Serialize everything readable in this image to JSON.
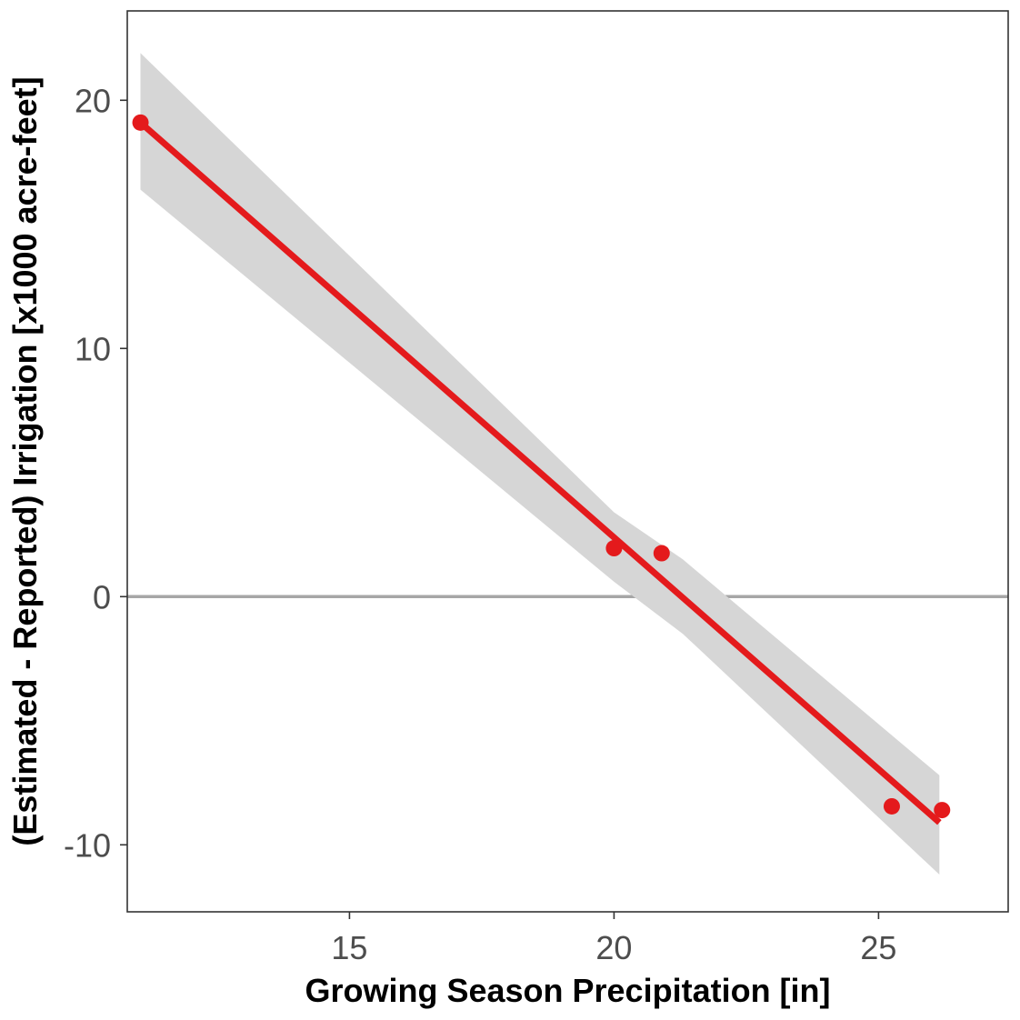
{
  "chart_data": {
    "type": "scatter",
    "xlabel": "Growing Season Precipitation [in]",
    "ylabel": "(Estimated - Reported) Irrigation [x1000 acre-feet]",
    "xlim": [
      10.8,
      27.45
    ],
    "ylim": [
      -12.7,
      23.6
    ],
    "x_ticks": [
      15,
      20,
      25
    ],
    "y_ticks": [
      -10,
      0,
      10,
      20
    ],
    "x_tick_labels": [
      "15",
      "20",
      "25"
    ],
    "y_tick_labels": [
      "-10",
      "0",
      "10",
      "20"
    ],
    "grid": false,
    "legend": "none",
    "points": [
      {
        "x": 11.05,
        "y": 19.1
      },
      {
        "x": 20.0,
        "y": 1.95
      },
      {
        "x": 20.9,
        "y": 1.75
      },
      {
        "x": 25.25,
        "y": -8.45
      },
      {
        "x": 26.2,
        "y": -8.6
      }
    ],
    "fit_line": {
      "x": [
        11.05,
        26.15
      ],
      "y": [
        19.1,
        -9.1
      ]
    },
    "confidence_band": {
      "x": [
        11.05,
        20.0,
        21.3,
        26.15
      ],
      "lower": [
        16.4,
        0.6,
        -1.5,
        -11.2
      ],
      "upper": [
        21.9,
        3.4,
        1.5,
        -7.2
      ]
    },
    "reference_line_y": 0,
    "colors": {
      "points": "#e41a1c",
      "fit_line": "#e41a1c",
      "band": "#d6d6d6",
      "reference_line": "#a6a6a6",
      "frame": "#333333"
    }
  }
}
